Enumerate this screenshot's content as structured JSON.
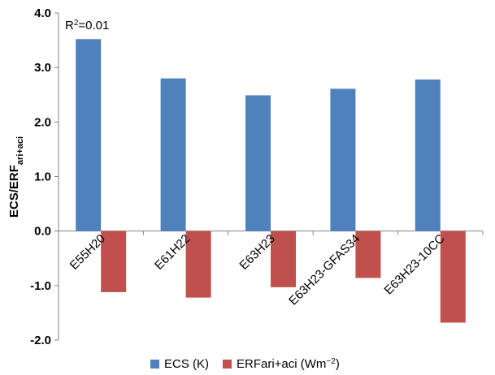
{
  "chart_data": {
    "type": "bar",
    "categories": [
      "E55H20",
      "E61H22",
      "E63H23",
      "E63H23-GFAS34",
      "E63H23-10CC"
    ],
    "series": [
      {
        "name": "ECS (K)",
        "values": [
          3.52,
          2.8,
          2.49,
          2.61,
          2.78
        ],
        "color": "#4F81BD"
      },
      {
        "name": "ERFari+aci (Wm",
        "name_sup": "−2",
        "name_tail": ")",
        "values": [
          -1.12,
          -1.22,
          -1.03,
          -0.86,
          -1.68
        ],
        "color": "#C0504D"
      }
    ],
    "ylabel": {
      "main": "ECS/ERF",
      "sub": "ari+aci"
    },
    "ylim": [
      -2.0,
      4.0
    ],
    "yticks": [
      "-2.0",
      "-1.0",
      "0.0",
      "1.0",
      "2.0",
      "3.0",
      "4.0"
    ],
    "ytick_values": [
      -2.0,
      -1.0,
      0.0,
      1.0,
      2.0,
      3.0,
      4.0
    ],
    "annotation": {
      "prefix": "R",
      "sup": "2",
      "suffix": "=0.01"
    },
    "legend_position": "bottom",
    "grid": false
  }
}
